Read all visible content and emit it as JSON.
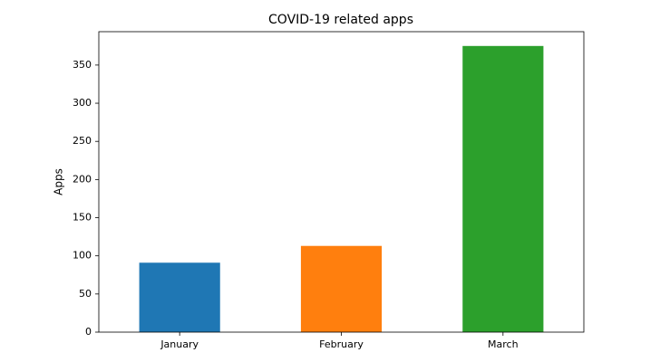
{
  "chart_data": {
    "type": "bar",
    "title": "COVID-19 related apps",
    "y_label": "Apps",
    "categories": [
      "January",
      "February",
      "March"
    ],
    "values": [
      91,
      113,
      375
    ],
    "colors": [
      "#1f77b4",
      "#ff7f0e",
      "#2ca02c"
    ],
    "ylim": [
      0,
      393.75
    ],
    "yticks": [
      0,
      50,
      100,
      150,
      200,
      250,
      300,
      350
    ],
    "grid": false
  }
}
